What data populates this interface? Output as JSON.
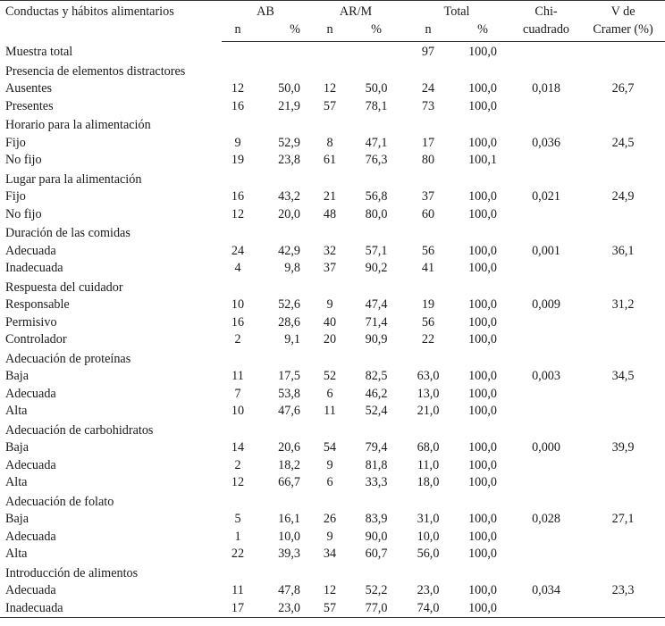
{
  "header": {
    "col_label": "Conductas y hábitos alimentarios",
    "ab": "AB",
    "arm": "AR/M",
    "total": "Total",
    "chi_line1": "Chi-",
    "chi_line2": "cuadrado",
    "v_line1": "V de",
    "v_line2": "Cramer (%)",
    "n": "n",
    "pct": "%"
  },
  "sample_row": {
    "label": "Muestra total",
    "total_n": "97",
    "total_pct": "100,0"
  },
  "groups": [
    {
      "title": "Presencia de elementos distractores",
      "rows": [
        {
          "label": "Ausentes",
          "ab_n": "12",
          "ab_pct": "50,0",
          "arm_n": "12",
          "arm_pct": "50,0",
          "tot_n": "24",
          "tot_pct": "100,0",
          "chi": "0,018",
          "v": "26,7"
        },
        {
          "label": "Presentes",
          "ab_n": "16",
          "ab_pct": "21,9",
          "arm_n": "57",
          "arm_pct": "78,1",
          "tot_n": "73",
          "tot_pct": "100,0",
          "chi": "",
          "v": ""
        }
      ]
    },
    {
      "title": "Horario para la alimentación",
      "rows": [
        {
          "label": "Fijo",
          "ab_n": "9",
          "ab_pct": "52,9",
          "arm_n": "8",
          "arm_pct": "47,1",
          "tot_n": "17",
          "tot_pct": "100,0",
          "chi": "0,036",
          "v": "24,5"
        },
        {
          "label": "No fijo",
          "ab_n": "19",
          "ab_pct": "23,8",
          "arm_n": "61",
          "arm_pct": "76,3",
          "tot_n": "80",
          "tot_pct": "100,1",
          "chi": "",
          "v": ""
        }
      ]
    },
    {
      "title": "Lugar para la alimentación",
      "rows": [
        {
          "label": "Fijo",
          "ab_n": "16",
          "ab_pct": "43,2",
          "arm_n": "21",
          "arm_pct": "56,8",
          "tot_n": "37",
          "tot_pct": "100,0",
          "chi": "0,021",
          "v": "24,9"
        },
        {
          "label": "No fijo",
          "ab_n": "12",
          "ab_pct": "20,0",
          "arm_n": "48",
          "arm_pct": "80,0",
          "tot_n": "60",
          "tot_pct": "100,0",
          "chi": "",
          "v": ""
        }
      ]
    },
    {
      "title": "Duración de las comidas",
      "rows": [
        {
          "label": "Adecuada",
          "ab_n": "24",
          "ab_pct": "42,9",
          "arm_n": "32",
          "arm_pct": "57,1",
          "tot_n": "56",
          "tot_pct": "100,0",
          "chi": "0,001",
          "v": "36,1"
        },
        {
          "label": "Inadecuada",
          "ab_n": "4",
          "ab_pct": "9,8",
          "arm_n": "37",
          "arm_pct": "90,2",
          "tot_n": "41",
          "tot_pct": "100,0",
          "chi": "",
          "v": ""
        }
      ]
    },
    {
      "title": "Respuesta del cuidador",
      "rows": [
        {
          "label": "Responsable",
          "ab_n": "10",
          "ab_pct": "52,6",
          "arm_n": "9",
          "arm_pct": "47,4",
          "tot_n": "19",
          "tot_pct": "100,0",
          "chi": "0,009",
          "v": "31,2"
        },
        {
          "label": "Permisivo",
          "ab_n": "16",
          "ab_pct": "28,6",
          "arm_n": "40",
          "arm_pct": "71,4",
          "tot_n": "56",
          "tot_pct": "100,0",
          "chi": "",
          "v": ""
        },
        {
          "label": "Controlador",
          "ab_n": "2",
          "ab_pct": "9,1",
          "arm_n": "20",
          "arm_pct": "90,9",
          "tot_n": "22",
          "tot_pct": "100,0",
          "chi": "",
          "v": ""
        }
      ]
    },
    {
      "title": "Adecuación de proteínas",
      "rows": [
        {
          "label": "Baja",
          "ab_n": "11",
          "ab_pct": "17,5",
          "arm_n": "52",
          "arm_pct": "82,5",
          "tot_n": "63,0",
          "tot_pct": "100,0",
          "chi": "0,003",
          "v": "34,5"
        },
        {
          "label": "Adecuada",
          "ab_n": "7",
          "ab_pct": "53,8",
          "arm_n": "6",
          "arm_pct": "46,2",
          "tot_n": "13,0",
          "tot_pct": "100,0",
          "chi": "",
          "v": ""
        },
        {
          "label": "Alta",
          "ab_n": "10",
          "ab_pct": "47,6",
          "arm_n": "11",
          "arm_pct": "52,4",
          "tot_n": "21,0",
          "tot_pct": "100,0",
          "chi": "",
          "v": ""
        }
      ]
    },
    {
      "title": "Adecuación de carbohidratos",
      "rows": [
        {
          "label": "Baja",
          "ab_n": "14",
          "ab_pct": "20,6",
          "arm_n": "54",
          "arm_pct": "79,4",
          "tot_n": "68,0",
          "tot_pct": "100,0",
          "chi": "0,000",
          "v": "39,9"
        },
        {
          "label": "Adecuada",
          "ab_n": "2",
          "ab_pct": "18,2",
          "arm_n": "9",
          "arm_pct": "81,8",
          "tot_n": "11,0",
          "tot_pct": "100,0",
          "chi": "",
          "v": ""
        },
        {
          "label": "Alta",
          "ab_n": "12",
          "ab_pct": "66,7",
          "arm_n": "6",
          "arm_pct": "33,3",
          "tot_n": "18,0",
          "tot_pct": "100,0",
          "chi": "",
          "v": ""
        }
      ]
    },
    {
      "title": "Adecuación de folato",
      "rows": [
        {
          "label": "Baja",
          "ab_n": "5",
          "ab_pct": "16,1",
          "arm_n": "26",
          "arm_pct": "83,9",
          "tot_n": "31,0",
          "tot_pct": "100,0",
          "chi": "0,028",
          "v": "27,1"
        },
        {
          "label": "Adecuada",
          "ab_n": "1",
          "ab_pct": "10,0",
          "arm_n": "9",
          "arm_pct": "90,0",
          "tot_n": "10,0",
          "tot_pct": "100,0",
          "chi": "",
          "v": ""
        },
        {
          "label": "Alta",
          "ab_n": "22",
          "ab_pct": "39,3",
          "arm_n": "34",
          "arm_pct": "60,7",
          "tot_n": "56,0",
          "tot_pct": "100,0",
          "chi": "",
          "v": ""
        }
      ]
    },
    {
      "title": "Introducción de alimentos",
      "rows": [
        {
          "label": "Adecuada",
          "ab_n": "11",
          "ab_pct": "47,8",
          "arm_n": "12",
          "arm_pct": "52,2",
          "tot_n": "23,0",
          "tot_pct": "100,0",
          "chi": "0,034",
          "v": "23,3"
        },
        {
          "label": "Inadecuada",
          "ab_n": "17",
          "ab_pct": "23,0",
          "arm_n": "57",
          "arm_pct": "77,0",
          "tot_n": "74,0",
          "tot_pct": "100,0",
          "chi": "",
          "v": ""
        }
      ]
    }
  ]
}
